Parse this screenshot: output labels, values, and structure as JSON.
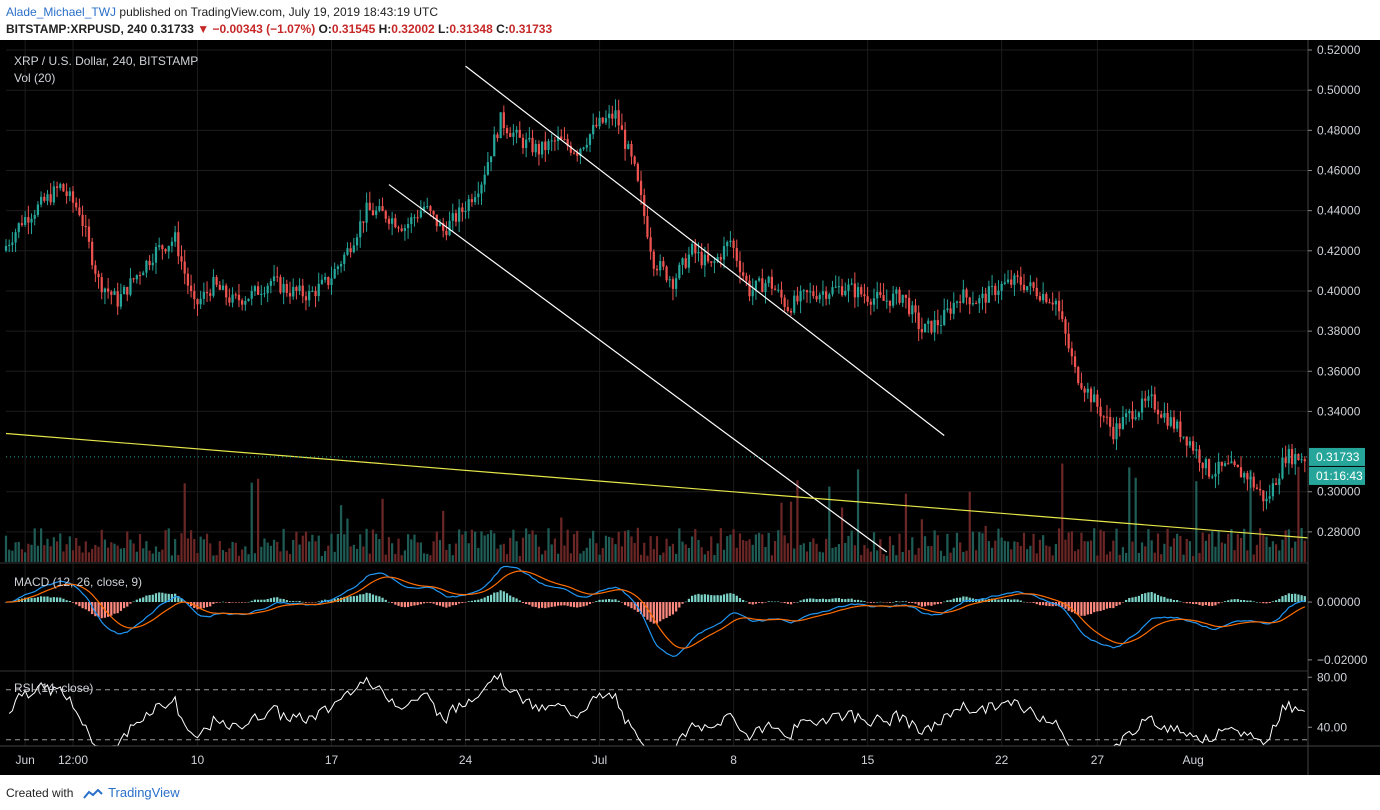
{
  "header": {
    "author": "Alade_Michael_TWJ",
    "published": "published on TradingView.com, July 19, 2019 18:43:19 UTC",
    "symbol_line": "BITSTAMP:XRPUSD, 240",
    "last": "0.31733",
    "change": "−0.00343 (−1.07%)",
    "o_label": "O:",
    "o": "0.31545",
    "h_label": "H:",
    "h": "0.32002",
    "l_label": "L:",
    "l": "0.31348",
    "c_label": "C:",
    "c": "0.31733"
  },
  "footer": {
    "created_with": "Created with",
    "brand": "TradingView"
  },
  "colors": {
    "up": "#26a69a",
    "down": "#ef5350",
    "channel": "#ffffff",
    "support": "#e6e64a",
    "macd": "#2196f3",
    "signal": "#ff6d00",
    "rsi": "#ffffff"
  },
  "chart_data": {
    "type": "candlestick",
    "title": "XRP / U.S. Dollar, 240, BITSTAMP",
    "volume_label": "Vol (20)",
    "price_axis": {
      "range": [
        0.265,
        0.525
      ],
      "ticks": [
        "0.52000",
        "0.50000",
        "0.48000",
        "0.46000",
        "0.44000",
        "0.42000",
        "0.40000",
        "0.38000",
        "0.36000",
        "0.34000",
        "0.30000",
        "0.28000"
      ]
    },
    "last_price_label": "0.31733",
    "countdown_label": "01:16:43",
    "x_axis": {
      "range": [
        "2019-05-31",
        "2019-08-07"
      ],
      "ticks": [
        {
          "date": "2019-06-01",
          "label": "Jun"
        },
        {
          "date": "2019-06-03T12:00",
          "label": "12:00"
        },
        {
          "date": "2019-06-10",
          "label": "10"
        },
        {
          "date": "2019-06-17",
          "label": "17"
        },
        {
          "date": "2019-06-24",
          "label": "24"
        },
        {
          "date": "2019-07-01",
          "label": "Jul"
        },
        {
          "date": "2019-07-08",
          "label": "8"
        },
        {
          "date": "2019-07-15",
          "label": "15"
        },
        {
          "date": "2019-07-22",
          "label": "22"
        },
        {
          "date": "2019-07-27",
          "label": "27"
        },
        {
          "date": "2019-08-01",
          "label": "Aug"
        }
      ]
    },
    "price_path": [
      [
        "2019-05-31",
        0.42
      ],
      [
        "2019-06-01",
        0.435
      ],
      [
        "2019-06-02",
        0.443
      ],
      [
        "2019-06-03",
        0.452
      ],
      [
        "2019-06-04",
        0.44
      ],
      [
        "2019-06-05",
        0.405
      ],
      [
        "2019-06-06",
        0.395
      ],
      [
        "2019-06-07",
        0.408
      ],
      [
        "2019-06-08",
        0.42
      ],
      [
        "2019-06-09",
        0.426
      ],
      [
        "2019-06-10",
        0.392
      ],
      [
        "2019-06-11",
        0.403
      ],
      [
        "2019-06-12",
        0.395
      ],
      [
        "2019-06-13",
        0.398
      ],
      [
        "2019-06-14",
        0.405
      ],
      [
        "2019-06-15",
        0.4
      ],
      [
        "2019-06-16",
        0.398
      ],
      [
        "2019-06-17",
        0.405
      ],
      [
        "2019-06-18",
        0.42
      ],
      [
        "2019-06-19",
        0.44
      ],
      [
        "2019-06-20",
        0.438
      ],
      [
        "2019-06-21",
        0.432
      ],
      [
        "2019-06-22",
        0.442
      ],
      [
        "2019-06-23",
        0.43
      ],
      [
        "2019-06-24",
        0.44
      ],
      [
        "2019-06-25",
        0.455
      ],
      [
        "2019-06-26",
        0.485
      ],
      [
        "2019-06-27",
        0.475
      ],
      [
        "2019-06-28",
        0.47
      ],
      [
        "2019-06-29",
        0.475
      ],
      [
        "2019-06-30",
        0.47
      ],
      [
        "2019-07-01",
        0.482
      ],
      [
        "2019-07-02",
        0.488
      ],
      [
        "2019-07-03",
        0.46
      ],
      [
        "2019-07-04",
        0.415
      ],
      [
        "2019-07-05",
        0.405
      ],
      [
        "2019-07-06",
        0.42
      ],
      [
        "2019-07-07",
        0.412
      ],
      [
        "2019-07-08",
        0.425
      ],
      [
        "2019-07-09",
        0.4
      ],
      [
        "2019-07-10",
        0.405
      ],
      [
        "2019-07-11",
        0.392
      ],
      [
        "2019-07-12",
        0.398
      ],
      [
        "2019-07-13",
        0.4
      ],
      [
        "2019-07-14",
        0.402
      ],
      [
        "2019-07-15",
        0.398
      ],
      [
        "2019-07-16",
        0.395
      ],
      [
        "2019-07-17",
        0.398
      ],
      [
        "2019-07-18",
        0.38
      ],
      [
        "2019-07-19",
        0.385
      ],
      [
        "2019-07-20",
        0.398
      ],
      [
        "2019-07-21",
        0.395
      ],
      [
        "2019-07-22",
        0.402
      ],
      [
        "2019-07-23",
        0.405
      ],
      [
        "2019-07-24",
        0.4
      ],
      [
        "2019-07-25",
        0.395
      ],
      [
        "2019-07-26",
        0.36
      ],
      [
        "2019-07-27",
        0.345
      ],
      [
        "2019-07-28",
        0.33
      ],
      [
        "2019-07-29",
        0.34
      ],
      [
        "2019-07-30",
        0.345
      ],
      [
        "2019-07-31",
        0.335
      ],
      [
        "2019-08-01",
        0.325
      ],
      [
        "2019-08-02",
        0.31
      ],
      [
        "2019-08-03",
        0.312
      ],
      [
        "2019-08-04",
        0.308
      ],
      [
        "2019-08-05",
        0.295
      ],
      [
        "2019-08-06",
        0.318
      ],
      [
        "2019-08-07",
        0.317
      ]
    ],
    "annotations": [
      {
        "name": "channel-upper",
        "from": [
          "2019-06-24",
          0.512
        ],
        "to": [
          "2019-07-19",
          0.328
        ]
      },
      {
        "name": "channel-lower",
        "from": [
          "2019-06-20",
          0.453
        ],
        "to": [
          "2019-07-16",
          0.27
        ]
      },
      {
        "name": "support-line",
        "from": [
          "2019-05-31",
          0.329
        ],
        "to": [
          "2019-08-07",
          0.277
        ]
      }
    ],
    "macd": {
      "label": "MACD (12, 26, close, 9)",
      "range": [
        -0.0235,
        0.0135
      ],
      "ticks": [
        "0.00000",
        "−0.02000"
      ]
    },
    "rsi": {
      "label": "RSI (14, close)",
      "range": [
        25,
        85
      ],
      "ticks": [
        "80.00",
        "40.00"
      ],
      "bands": [
        70,
        30
      ]
    }
  }
}
